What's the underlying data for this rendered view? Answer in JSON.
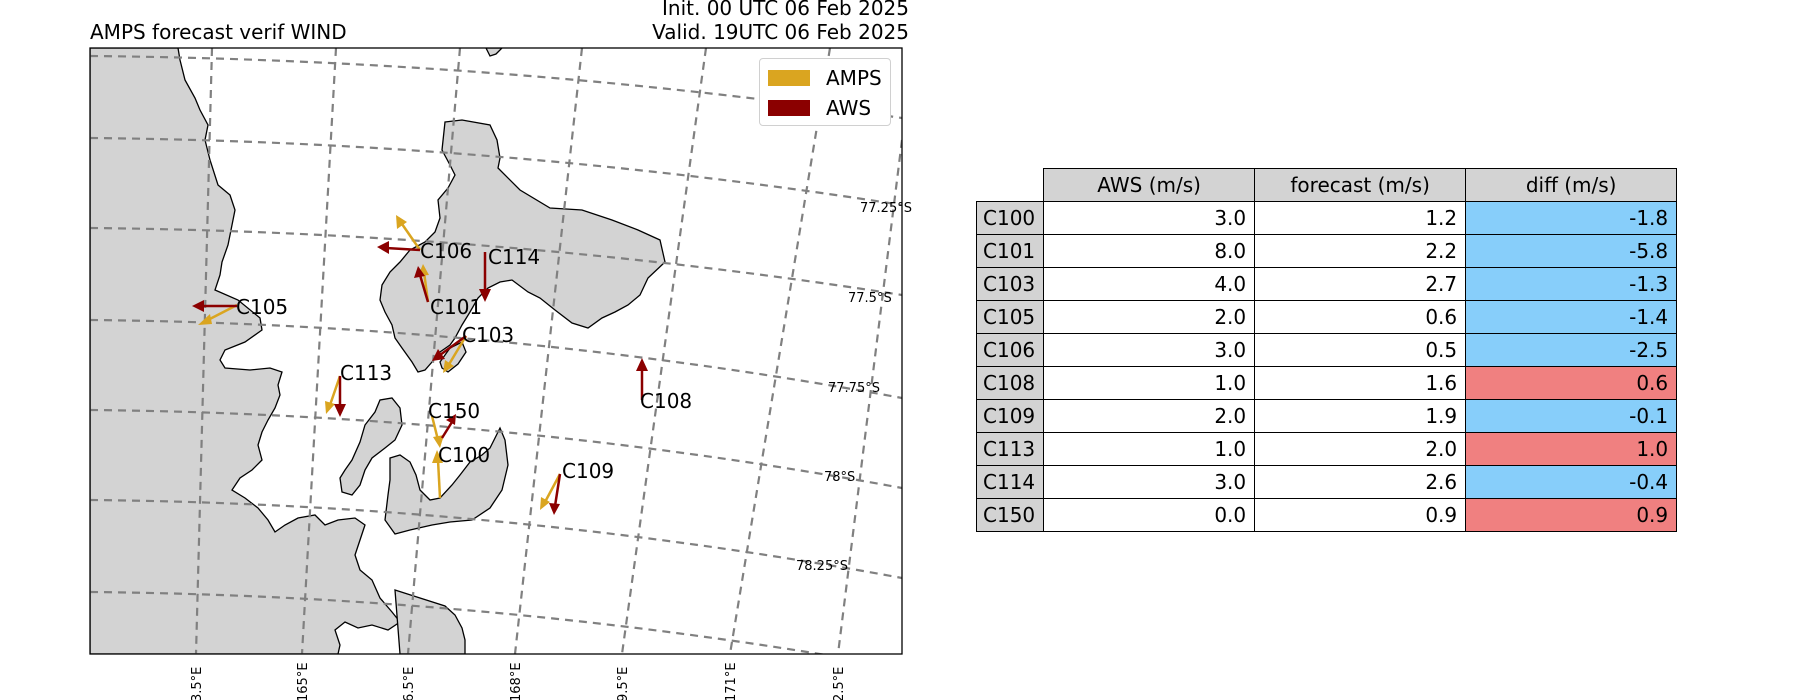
{
  "header": {
    "title": "AMPS forecast verif WIND",
    "init": "Init. 00 UTC 06 Feb 2025",
    "valid": "Valid. 19UTC 06 Feb 2025"
  },
  "legend": [
    {
      "label": "AMPS",
      "color": "#daa520"
    },
    {
      "label": "AWS",
      "color": "#8b0000"
    }
  ],
  "map": {
    "lat_labels": [
      "77.25°S",
      "77.5°S",
      "77.75°S",
      "78°S",
      "78.25°S"
    ],
    "lon_labels": [
      "3.5°E",
      "165°E",
      "6.5°E",
      "168°E",
      "9.5°E",
      "171°E",
      "2.5°E"
    ],
    "stations": [
      "C105",
      "C106",
      "C114",
      "C101",
      "C103",
      "C113",
      "C108",
      "C150",
      "C100",
      "C109"
    ]
  },
  "table": {
    "headers": [
      "AWS (m/s)",
      "forecast (m/s)",
      "diff (m/s)"
    ],
    "rows": [
      {
        "id": "C100",
        "aws": "3.0",
        "forecast": "1.2",
        "diff": "-1.8",
        "color": "#87cefa"
      },
      {
        "id": "C101",
        "aws": "8.0",
        "forecast": "2.2",
        "diff": "-5.8",
        "color": "#87cefa"
      },
      {
        "id": "C103",
        "aws": "4.0",
        "forecast": "2.7",
        "diff": "-1.3",
        "color": "#87cefa"
      },
      {
        "id": "C105",
        "aws": "2.0",
        "forecast": "0.6",
        "diff": "-1.4",
        "color": "#87cefa"
      },
      {
        "id": "C106",
        "aws": "3.0",
        "forecast": "0.5",
        "diff": "-2.5",
        "color": "#87cefa"
      },
      {
        "id": "C108",
        "aws": "1.0",
        "forecast": "1.6",
        "diff": "0.6",
        "color": "#f08080"
      },
      {
        "id": "C109",
        "aws": "2.0",
        "forecast": "1.9",
        "diff": "-0.1",
        "color": "#87cefa"
      },
      {
        "id": "C113",
        "aws": "1.0",
        "forecast": "2.0",
        "diff": "1.0",
        "color": "#f08080"
      },
      {
        "id": "C114",
        "aws": "3.0",
        "forecast": "2.6",
        "diff": "-0.4",
        "color": "#87cefa"
      },
      {
        "id": "C150",
        "aws": "0.0",
        "forecast": "0.9",
        "diff": "0.9",
        "color": "#f08080"
      }
    ]
  }
}
